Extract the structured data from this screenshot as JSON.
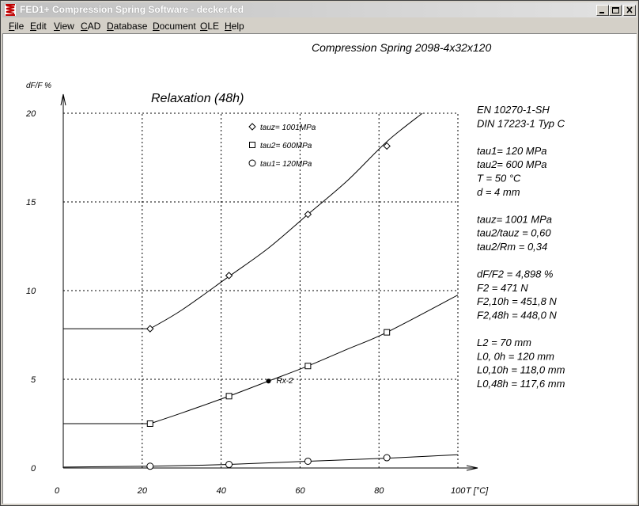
{
  "window": {
    "title": "FED1+  Compression Spring Software  -  decker.fed",
    "buttons": [
      "minimize",
      "maximize",
      "close"
    ]
  },
  "menu": {
    "items": [
      {
        "label": "File",
        "u": "F",
        "rest": "ile"
      },
      {
        "label": "Edit",
        "u": "E",
        "rest": "dit"
      },
      {
        "label": "View",
        "u": "V",
        "rest": "iew"
      },
      {
        "label": "CAD",
        "u": "C",
        "rest": "AD"
      },
      {
        "label": "Database",
        "u": "D",
        "rest": "atabase"
      },
      {
        "label": "Document",
        "u": "D",
        "rest": "ocument"
      },
      {
        "label": "OLE",
        "u": "O",
        "rest": "LE"
      },
      {
        "label": "Help",
        "u": "H",
        "rest": "elp"
      }
    ]
  },
  "header": "Compression Spring  2098-4x32x120",
  "info_panel": [
    "EN 10270-1-SH",
    "DIN 17223-1 Typ C",
    "",
    "tau1=  120 MPa",
    "tau2=  600 MPa",
    "T = 50 °C",
    "d = 4 mm",
    "",
    "tauz= 1001 MPa",
    "tau2/tauz = 0,60",
    "tau2/Rm = 0,34",
    "",
    "dF/F2 = 4,898 %",
    "F2 = 471 N",
    "F2,10h = 451,8 N",
    "F2,48h = 448,0 N",
    "",
    "L2 = 70 mm",
    "L0, 0h = 120 mm",
    "L0,10h = 118,0 mm",
    "L0,48h = 117,6 mm"
  ],
  "chart_data": {
    "type": "line",
    "title": "Relaxation (48h)",
    "xlabel": "T [°C]",
    "ylabel": "dF/F %",
    "xlim": [
      0,
      100
    ],
    "ylim": [
      0,
      20
    ],
    "x_ticks": [
      "0",
      "20",
      "40",
      "60",
      "80",
      "100"
    ],
    "y_ticks": [
      "0",
      "5",
      "10",
      "15",
      "20"
    ],
    "grid": true,
    "legend_position": "top-center",
    "series": [
      {
        "name": "tauz= 1001MPa",
        "marker": "diamond",
        "curve": [
          [
            0,
            7.85
          ],
          [
            22,
            7.85
          ],
          [
            30,
            8.9
          ],
          [
            42,
            10.8
          ],
          [
            52,
            12.4
          ],
          [
            62,
            14.3
          ],
          [
            72,
            16.2
          ],
          [
            82,
            18.4
          ],
          [
            91,
            20.0
          ]
        ],
        "points": [
          [
            22,
            7.85
          ],
          [
            42,
            10.85
          ],
          [
            62,
            14.3
          ],
          [
            82,
            18.15
          ]
        ]
      },
      {
        "name": "tau2= 600MPa",
        "marker": "square",
        "curve": [
          [
            0,
            2.5
          ],
          [
            22,
            2.5
          ],
          [
            30,
            3.1
          ],
          [
            42,
            4.05
          ],
          [
            52,
            4.9
          ],
          [
            62,
            5.75
          ],
          [
            72,
            6.7
          ],
          [
            82,
            7.65
          ],
          [
            100,
            9.75
          ]
        ],
        "points": [
          [
            22,
            2.5
          ],
          [
            42,
            4.05
          ],
          [
            62,
            5.75
          ],
          [
            82,
            7.65
          ]
        ]
      },
      {
        "name": "tau1= 120MPa",
        "marker": "circle",
        "curve": [
          [
            0,
            0.05
          ],
          [
            22,
            0.1
          ],
          [
            42,
            0.2
          ],
          [
            62,
            0.38
          ],
          [
            82,
            0.55
          ],
          [
            100,
            0.75
          ]
        ],
        "points": [
          [
            22,
            0.1
          ],
          [
            42,
            0.2
          ],
          [
            62,
            0.38
          ],
          [
            82,
            0.58
          ]
        ]
      }
    ],
    "annotation": {
      "label": "Rx-2",
      "x": 52,
      "y": 4.9
    }
  }
}
